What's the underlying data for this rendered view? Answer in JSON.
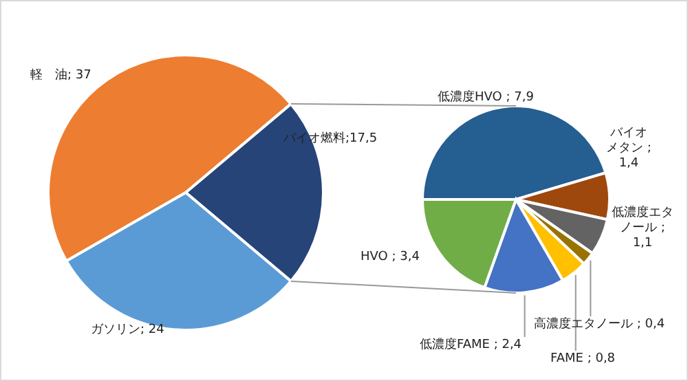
{
  "chart_data": [
    {
      "type": "pie",
      "categories": [
        "軽　油",
        "バイオ燃料",
        "ガソリン"
      ],
      "values": [
        37,
        17.5,
        24
      ],
      "value_labels": [
        "; 37",
        ";17,5",
        "; 24"
      ],
      "colors": [
        "#ed7d31",
        "#264478",
        "#5b9bd5"
      ]
    },
    {
      "type": "pie",
      "categories": [
        "低濃度HVO",
        "バイオメタン",
        "低濃度エタノール",
        "高濃度エタノール",
        "FAME",
        "低濃度FAME",
        "HVO"
      ],
      "values": [
        7.9,
        1.4,
        1.1,
        0.4,
        0.8,
        2.4,
        3.4
      ],
      "value_labels": [
        " ; 7,9",
        " ; 1,4",
        " ; 1,1",
        " ; 0,4",
        " ; 0,8",
        " ; 2,4",
        " ; 3,4"
      ],
      "colors": [
        "#255e91",
        "#9e480e",
        "#636363",
        "#997300",
        "#ffc000",
        "#4472c4",
        "#70ad47"
      ]
    }
  ]
}
